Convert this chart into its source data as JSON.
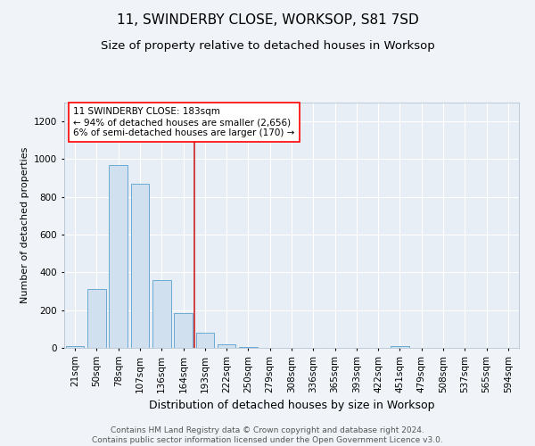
{
  "title": "11, SWINDERBY CLOSE, WORKSOP, S81 7SD",
  "subtitle": "Size of property relative to detached houses in Worksop",
  "xlabel": "Distribution of detached houses by size in Worksop",
  "ylabel": "Number of detached properties",
  "categories": [
    "21sqm",
    "50sqm",
    "78sqm",
    "107sqm",
    "136sqm",
    "164sqm",
    "193sqm",
    "222sqm",
    "250sqm",
    "279sqm",
    "308sqm",
    "336sqm",
    "365sqm",
    "393sqm",
    "422sqm",
    "451sqm",
    "479sqm",
    "508sqm",
    "537sqm",
    "565sqm",
    "594sqm"
  ],
  "values": [
    10,
    310,
    970,
    870,
    360,
    185,
    80,
    20,
    5,
    0,
    0,
    0,
    0,
    0,
    0,
    8,
    0,
    0,
    0,
    0,
    0
  ],
  "bar_color": "#d0e0ee",
  "bar_edge_color": "#6aaad4",
  "red_line_x": 5.5,
  "annotation_text": "11 SWINDERBY CLOSE: 183sqm\n← 94% of detached houses are smaller (2,656)\n6% of semi-detached houses are larger (170) →",
  "annotation_box_color": "white",
  "annotation_box_edge_color": "red",
  "red_line_color": "#cc2222",
  "ylim": [
    0,
    1300
  ],
  "yticks": [
    0,
    200,
    400,
    600,
    800,
    1000,
    1200
  ],
  "background_color": "#f0f4f8",
  "plot_background_color": "#e8eef5",
  "grid_color": "#c0ccd8",
  "footer": "Contains HM Land Registry data © Crown copyright and database right 2024.\nContains public sector information licensed under the Open Government Licence v3.0.",
  "title_fontsize": 11,
  "subtitle_fontsize": 9.5,
  "xlabel_fontsize": 9,
  "ylabel_fontsize": 8,
  "tick_fontsize": 7.5,
  "footer_fontsize": 6.5
}
